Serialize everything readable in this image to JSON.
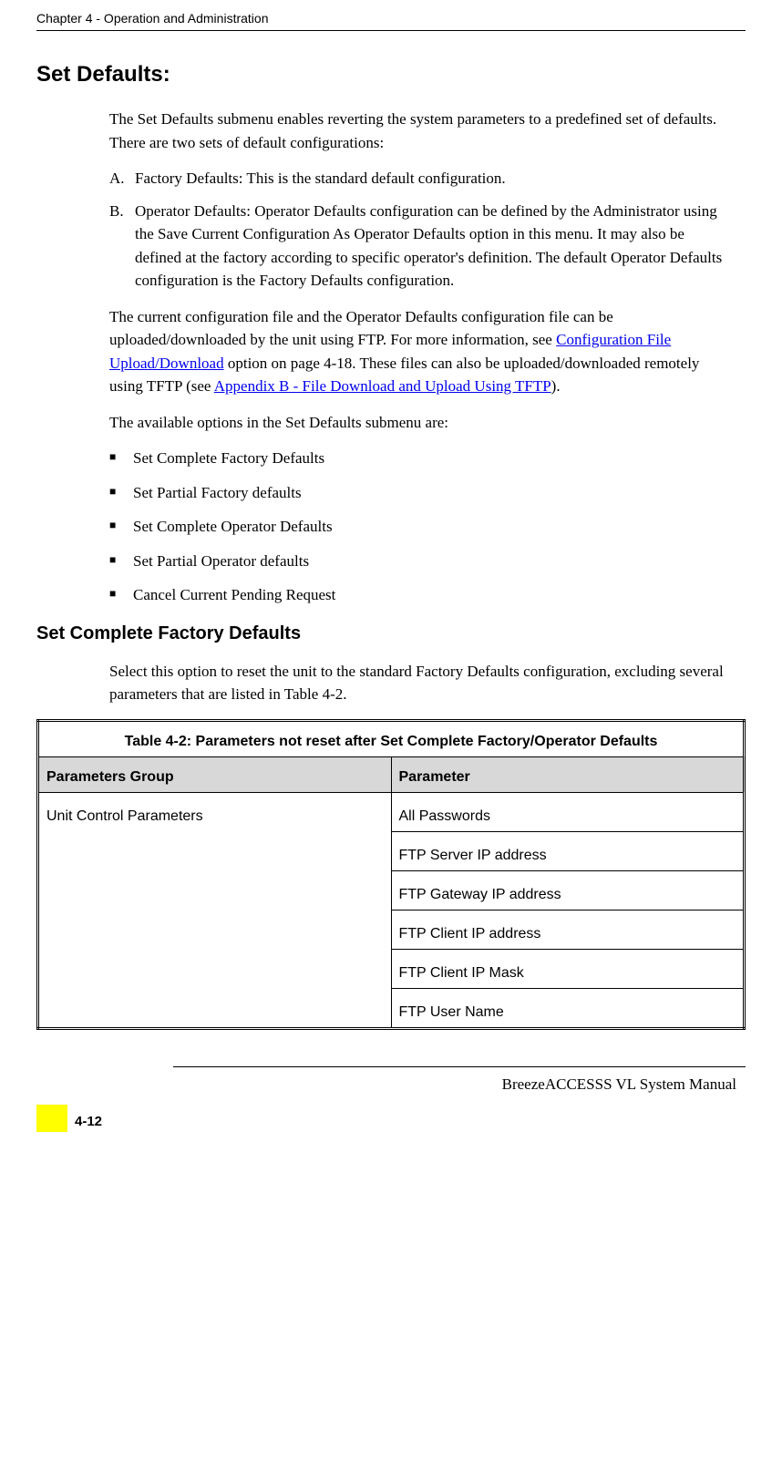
{
  "header": {
    "chapter_line": "Chapter 4 - Operation and Administration"
  },
  "section": {
    "title": "Set Defaults:",
    "intro": "The Set Defaults submenu enables reverting the system parameters to a predefined set of defaults. There are two sets of default configurations:",
    "items": [
      {
        "marker": "A.",
        "text": "Factory Defaults: This is the standard default configuration."
      },
      {
        "marker": "B.",
        "text": "Operator Defaults: Operator Defaults configuration can be defined by the Administrator using the Save Current Configuration As Operator Defaults option in this menu. It may also be defined at the factory according to specific operator's definition. The default Operator Defaults configuration is the Factory Defaults configuration."
      }
    ],
    "para2_pre": "The current configuration file and the Operator Defaults configuration file can be uploaded/downloaded by the unit using FTP. For more information, see ",
    "para2_link1": "Configuration File Upload/Download",
    "para2_mid": " option on page 4-18. These files can also be uploaded/downloaded remotely using TFTP (see ",
    "para2_link2": "Appendix B - File Download and Upload Using TFTP",
    "para2_post": ").",
    "para3": "The available options in the Set Defaults submenu are:",
    "bullets": [
      "Set Complete Factory Defaults",
      "Set Partial Factory defaults",
      "Set Complete Operator Defaults",
      "Set Partial Operator defaults",
      "Cancel Current Pending Request"
    ]
  },
  "subsection": {
    "title": "Set Complete Factory Defaults",
    "para": "Select this option to reset the unit to the standard Factory Defaults configuration, excluding several parameters that are listed in Table 4-2."
  },
  "table": {
    "title": "Table 4-2: Parameters not reset after Set Complete Factory/Operator Defaults",
    "columns": [
      "Parameters Group",
      "Parameter"
    ],
    "group": "Unit Control Parameters",
    "rows": [
      "All Passwords",
      "FTP Server IP address",
      "FTP Gateway IP address",
      "FTP Client IP address",
      "FTP Client IP Mask",
      "FTP User Name"
    ],
    "col_widths": [
      "50%",
      "50%"
    ],
    "header_bg": "#d8d8d8",
    "border_color": "#000000"
  },
  "footer": {
    "manual_name": "BreezeACCESSS VL System Manual",
    "page_number": "4-12",
    "accent_color": "#ffff00"
  }
}
